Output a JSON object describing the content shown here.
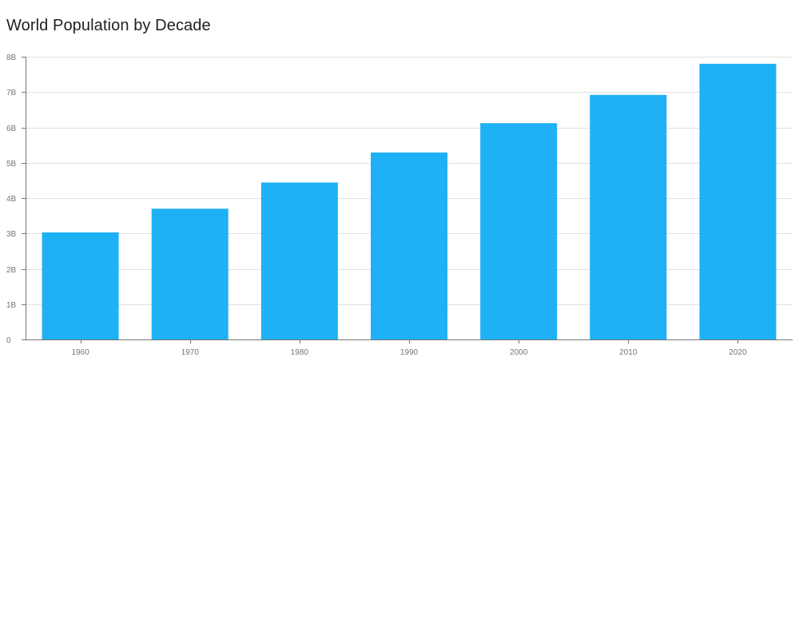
{
  "chart_data": {
    "type": "bar",
    "title": "World Population by Decade",
    "categories": [
      "1960",
      "1970",
      "1980",
      "1990",
      "2000",
      "2010",
      "2020"
    ],
    "values": [
      3.03,
      3.7,
      4.44,
      5.29,
      6.12,
      6.92,
      7.8
    ],
    "value_unit": "billions",
    "ylim": [
      0,
      8
    ],
    "y_ticks": [
      0,
      1,
      2,
      3,
      4,
      5,
      6,
      7,
      8
    ],
    "y_tick_labels": [
      "0",
      "1B",
      "2B",
      "3B",
      "4B",
      "5B",
      "6B",
      "7B",
      "8B"
    ],
    "grid": true,
    "bar_color": "#1eb1f5",
    "legend": "none"
  }
}
